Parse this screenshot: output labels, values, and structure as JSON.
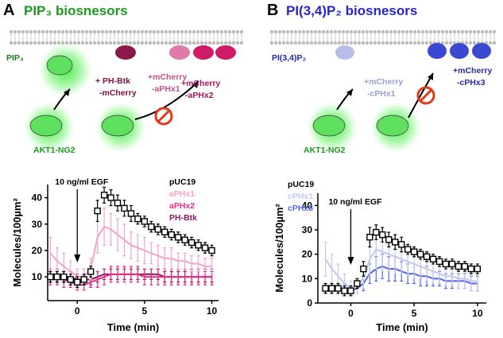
{
  "figure": {
    "panels": [
      {
        "letter": "A",
        "title": "PIP₃ biosnesors",
        "lipid": "PIP₃",
        "labels": [
          {
            "lines": [
              "+ PH-Btk",
              "-mCherry"
            ]
          },
          {
            "lines": [
              "+mCherry",
              "-aPHx1"
            ]
          },
          {
            "lines": [
              "+mCherry",
              "-aPHx2"
            ]
          }
        ],
        "reporter": "AKT1-NG2"
      },
      {
        "letter": "B",
        "title": "PI(3,4)P₂ biosnesors",
        "lipid": "PI(3,4)P₂",
        "labels": [
          {
            "lines": [
              "+mCherry",
              "-cPHx1"
            ]
          },
          {
            "lines": [
              "+mCherry",
              "-cPHx3"
            ]
          }
        ],
        "reporter": "AKT1-NG2"
      }
    ]
  },
  "chart_data": [
    {
      "type": "line",
      "x_label": "Time (min)",
      "y_label": "Molecules/100µm²",
      "annotation": "10 ng/ml EGF",
      "xlim": [
        -2.2,
        10.5
      ],
      "xticks": [
        0,
        5,
        10
      ],
      "ylim": [
        1,
        45
      ],
      "yticks": [
        10,
        20,
        30,
        40
      ],
      "legend": "upper right",
      "x": [
        -2,
        -1.5,
        -1,
        -0.5,
        0,
        0.5,
        1,
        1.5,
        2,
        2.5,
        3,
        3.5,
        4,
        4.5,
        5,
        5.5,
        6,
        6.5,
        7,
        7.5,
        8,
        8.5,
        9,
        9.5,
        10
      ],
      "series": [
        {
          "name": "pUC19",
          "color": "#000000",
          "marker": "open-square",
          "values": [
            10,
            10,
            10,
            9,
            8,
            9,
            12,
            35,
            41,
            40,
            38,
            36,
            34,
            32,
            31,
            29,
            28,
            27,
            26,
            25,
            24,
            23,
            22,
            21,
            20
          ],
          "errors": [
            2,
            2,
            2,
            2,
            2,
            2,
            2,
            4,
            3,
            3,
            3,
            3,
            3,
            2,
            2,
            2,
            2,
            2,
            2,
            2,
            2,
            2,
            2,
            2,
            2
          ]
        },
        {
          "name": "aPHx1",
          "color": "#f4a3cf",
          "marker": "line",
          "values": [
            19,
            16,
            14,
            12,
            10,
            10,
            13,
            25,
            29,
            28,
            26,
            24,
            22,
            21,
            20,
            19,
            18,
            17,
            17,
            16,
            16,
            15,
            15,
            14,
            14
          ],
          "errors": [
            6,
            5,
            5,
            4,
            3,
            3,
            4,
            6,
            7,
            6,
            6,
            6,
            5,
            5,
            5,
            4,
            4,
            4,
            4,
            3,
            3,
            3,
            3,
            3,
            3
          ]
        },
        {
          "name": "aPHx2",
          "color": "#e8308a",
          "marker": "line",
          "values": [
            10,
            10,
            9,
            8,
            7,
            7,
            8,
            9,
            10,
            11,
            11,
            11,
            11,
            11,
            10,
            10,
            10,
            10,
            10,
            10,
            10,
            10,
            10,
            10,
            10
          ],
          "errors": [
            3,
            3,
            3,
            2,
            2,
            2,
            2,
            3,
            3,
            3,
            3,
            3,
            3,
            3,
            3,
            3,
            3,
            3,
            3,
            3,
            3,
            3,
            3,
            3,
            3
          ]
        },
        {
          "name": "PH-Btk",
          "color": "#8b1a5a",
          "marker": "line",
          "values": [
            10,
            10,
            10,
            10,
            9,
            9,
            9,
            10,
            11,
            11,
            11,
            11,
            11,
            11,
            11,
            11,
            11,
            10,
            10,
            10,
            10,
            10,
            10,
            10,
            10
          ],
          "errors": [
            2,
            2,
            2,
            2,
            2,
            2,
            2,
            2,
            2,
            2,
            2,
            2,
            2,
            2,
            2,
            2,
            2,
            2,
            2,
            2,
            2,
            2,
            2,
            2,
            2
          ]
        }
      ]
    },
    {
      "type": "line",
      "x_label": "Time (min)",
      "y_label": "Molecules/100µm²",
      "annotation": "10 ng/ml EGF",
      "xlim": [
        -2.6,
        10.7
      ],
      "xticks": [
        0,
        5,
        10
      ],
      "ylim": [
        0,
        45
      ],
      "yticks": [
        0,
        10,
        20,
        30,
        40
      ],
      "legend": "upper left",
      "x": [
        -2,
        -1.5,
        -1,
        -0.5,
        0,
        0.5,
        1,
        1.5,
        2,
        2.5,
        3,
        3.5,
        4,
        4.5,
        5,
        5.5,
        6,
        6.5,
        7,
        7.5,
        8,
        8.5,
        9,
        9.5,
        10
      ],
      "series": [
        {
          "name": "pUC19",
          "color": "#000000",
          "marker": "open-square",
          "values": [
            6,
            6,
            6,
            5,
            5,
            8,
            14,
            27,
            29,
            28,
            26,
            25,
            24,
            22,
            21,
            20,
            19,
            18,
            17,
            16,
            16,
            15,
            15,
            14,
            14
          ],
          "errors": [
            2,
            2,
            2,
            2,
            2,
            2,
            3,
            4,
            3,
            3,
            3,
            3,
            3,
            2,
            2,
            2,
            2,
            2,
            2,
            2,
            2,
            2,
            2,
            2,
            2
          ]
        },
        {
          "name": "cPHx1",
          "color": "#c3c8f0",
          "marker": "line",
          "values": [
            18,
            14,
            11,
            8,
            6,
            7,
            10,
            18,
            22,
            21,
            20,
            19,
            18,
            17,
            16,
            15,
            14,
            13,
            12,
            11,
            11,
            10,
            10,
            9,
            9
          ],
          "errors": [
            7,
            6,
            5,
            4,
            3,
            3,
            4,
            7,
            8,
            8,
            7,
            7,
            6,
            6,
            6,
            5,
            5,
            5,
            4,
            4,
            4,
            4,
            4,
            4,
            4
          ]
        },
        {
          "name": "cPHx3",
          "color": "#5566e0",
          "marker": "line",
          "values": [
            6,
            6,
            6,
            6,
            5,
            6,
            8,
            12,
            14,
            15,
            14,
            14,
            13,
            12,
            12,
            11,
            11,
            10,
            10,
            9,
            9,
            9,
            9,
            8,
            8
          ],
          "errors": [
            2,
            2,
            2,
            2,
            2,
            2,
            3,
            4,
            5,
            5,
            5,
            5,
            4,
            4,
            4,
            4,
            4,
            3,
            3,
            3,
            3,
            3,
            3,
            3,
            3
          ]
        }
      ]
    }
  ]
}
